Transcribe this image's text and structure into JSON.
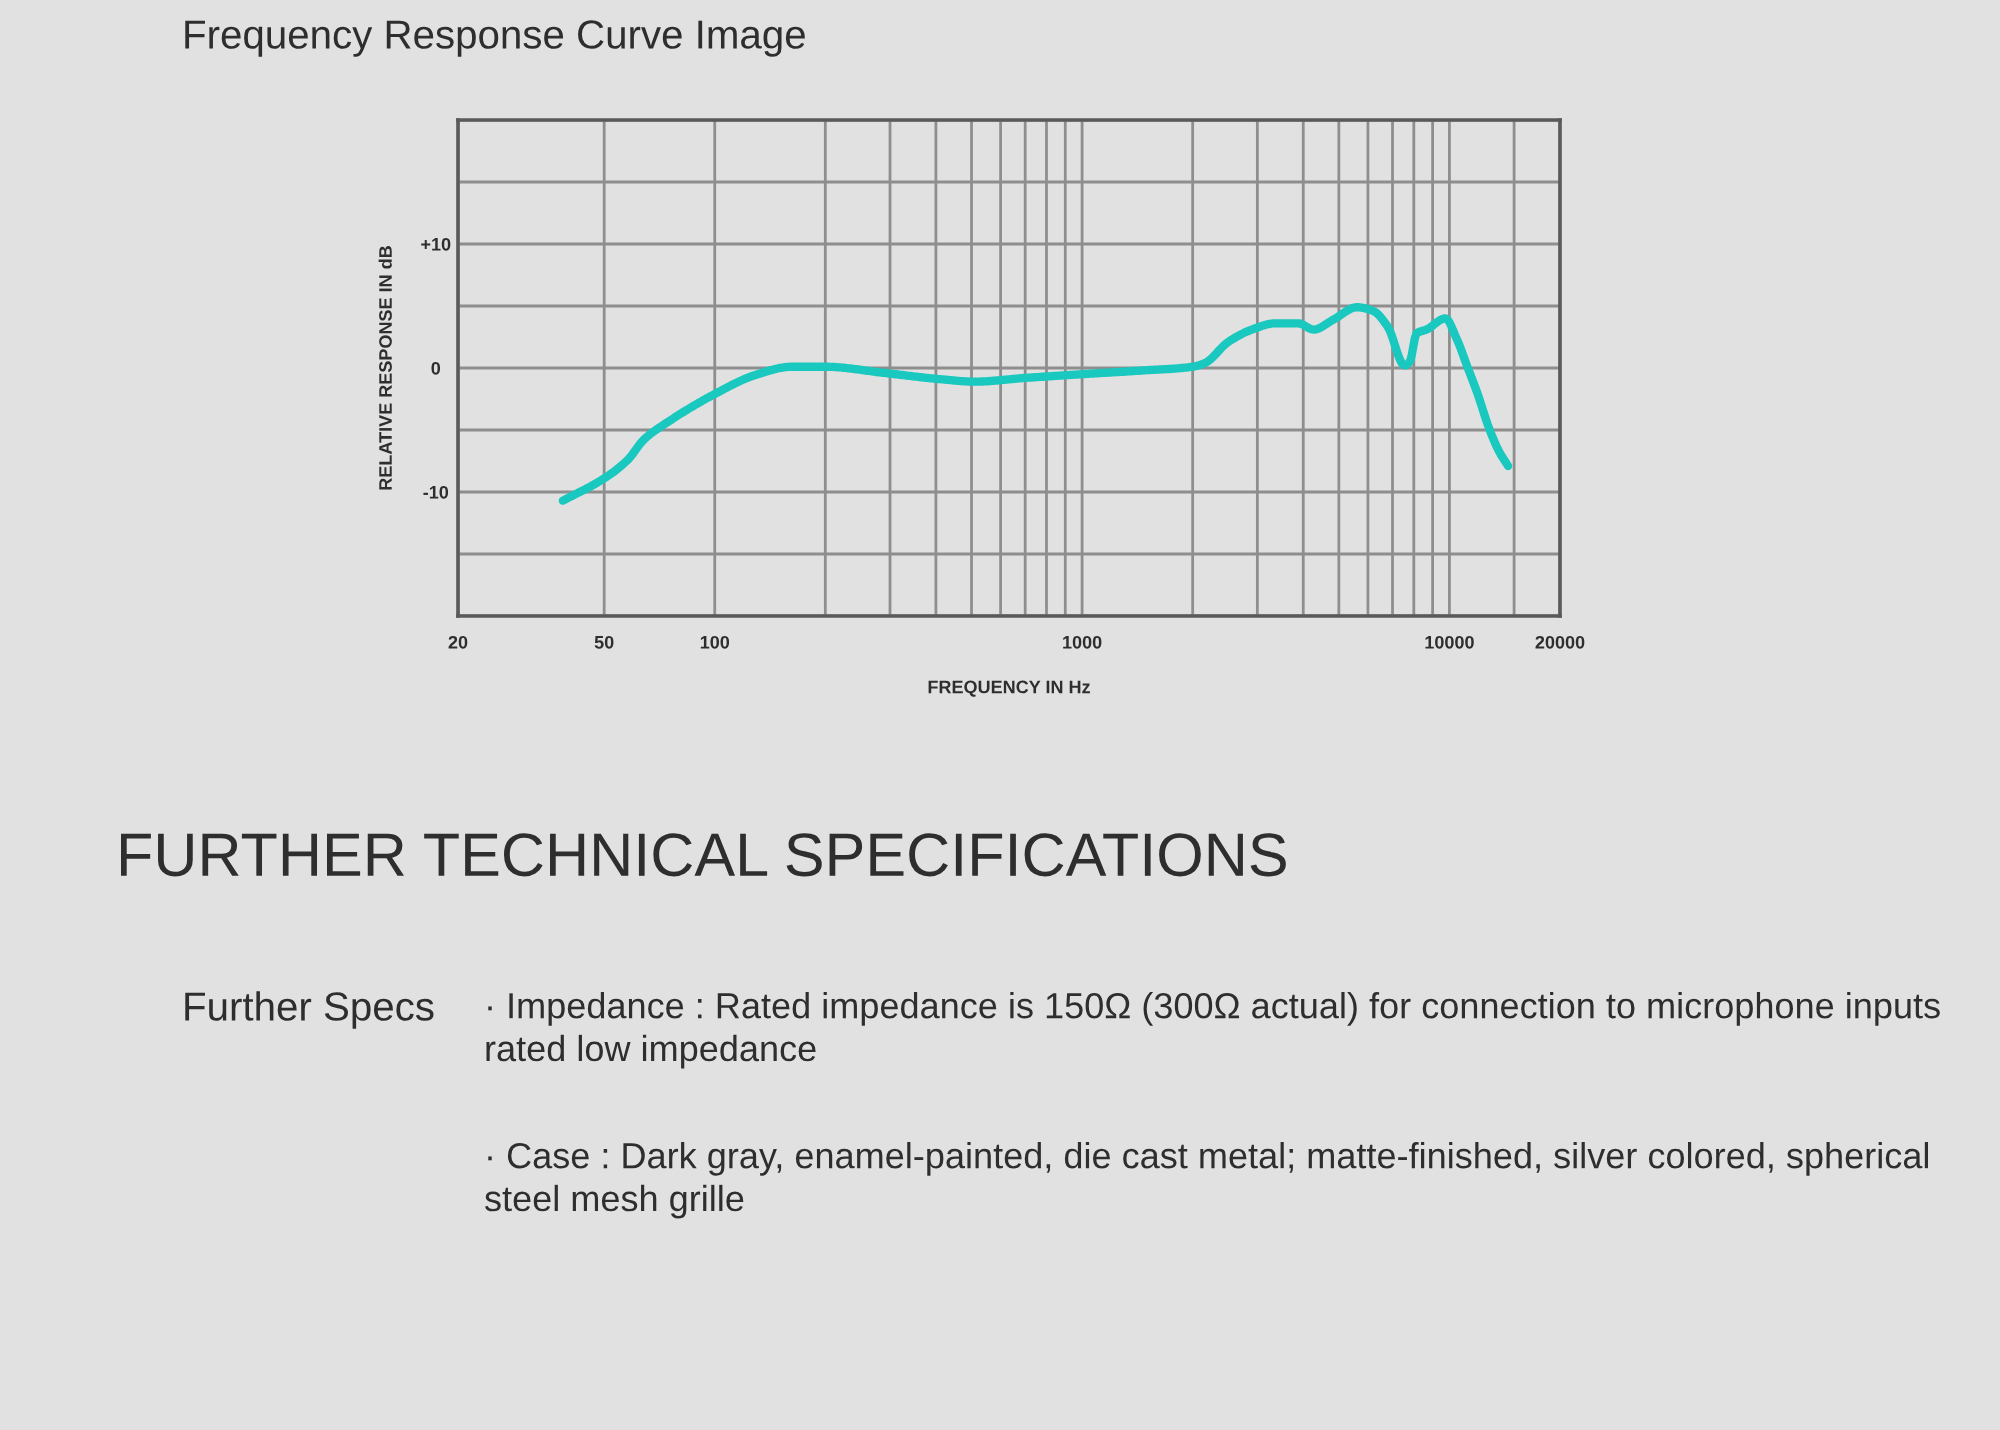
{
  "chart_data": {
    "type": "line",
    "title": "Frequency Response Curve Image",
    "xlabel": "FREQUENCY IN Hz",
    "ylabel": "RELATIVE RESPONSE IN dB",
    "log": "x",
    "x": [
      38.6,
      50,
      58,
      64,
      75,
      100,
      128,
      162,
      200,
      290,
      410,
      510,
      700,
      1000,
      1460,
      2000,
      2160,
      2500,
      2900,
      3350,
      3880,
      4270,
      4830,
      5600,
      6200,
      6800,
      7550,
      7800,
      8140,
      8670,
      9750,
      10450,
      11190,
      11970,
      12800,
      13690,
      14450
    ],
    "series": [
      {
        "color": "#19c8be",
        "values": [
          -10.7,
          -8.9,
          -7.4,
          -5.8,
          -4.3,
          -2.1,
          -0.6,
          0.1,
          0.1,
          -0.4,
          -0.9,
          -1.1,
          -0.8,
          -0.5,
          -0.2,
          0.1,
          0.4,
          2.1,
          3.1,
          3.6,
          3.6,
          3.1,
          3.9,
          4.9,
          4.6,
          3.3,
          0.2,
          0.5,
          2.8,
          3.1,
          4.0,
          2.4,
          0.1,
          -2.2,
          -4.8,
          -6.8,
          -7.9
        ]
      }
    ],
    "xlim": [
      20,
      20000
    ],
    "ylim": [
      -20,
      20
    ],
    "xticks": [
      20,
      50,
      100,
      {
        "value": 200,
        "label": null
      },
      {
        "value": 300,
        "label": null
      },
      {
        "value": 400,
        "label": null
      },
      {
        "value": 500,
        "label": null
      },
      {
        "value": 600,
        "label": null
      },
      {
        "value": 700,
        "label": null
      },
      {
        "value": 800,
        "label": null
      },
      {
        "value": 900,
        "label": null
      },
      1000,
      {
        "value": 2000,
        "label": null
      },
      {
        "value": 3000,
        "label": null
      },
      {
        "value": 4000,
        "label": null
      },
      {
        "value": 5000,
        "label": null
      },
      {
        "value": 6000,
        "label": null
      },
      {
        "value": 7000,
        "label": null
      },
      {
        "value": 8000,
        "label": null
      },
      {
        "value": 9000,
        "label": null
      },
      10000,
      {
        "value": 15000,
        "label": null
      },
      20000
    ],
    "yticks": [
      {
        "value": -20,
        "label": null
      },
      {
        "value": -15,
        "label": null
      },
      -10,
      {
        "value": -5,
        "label": null
      },
      0,
      {
        "value": 5,
        "label": null
      },
      {
        "value": 10,
        "label": "+10"
      },
      {
        "value": 15,
        "label": null
      },
      {
        "value": 20,
        "label": null
      }
    ],
    "grid": true,
    "annotations": [
      "FURTHER TECHNICAL SPECIFICATIONS",
      "Further Specs",
      "· Impedance : Rated impedance is 150Ω (300Ω actual) for connection to microphone inputs rated low impedance",
      "· Case : Dark gray, enamel-painted, die cast metal; matte-finished, silver colored, spherical steel mesh grille"
    ]
  }
}
